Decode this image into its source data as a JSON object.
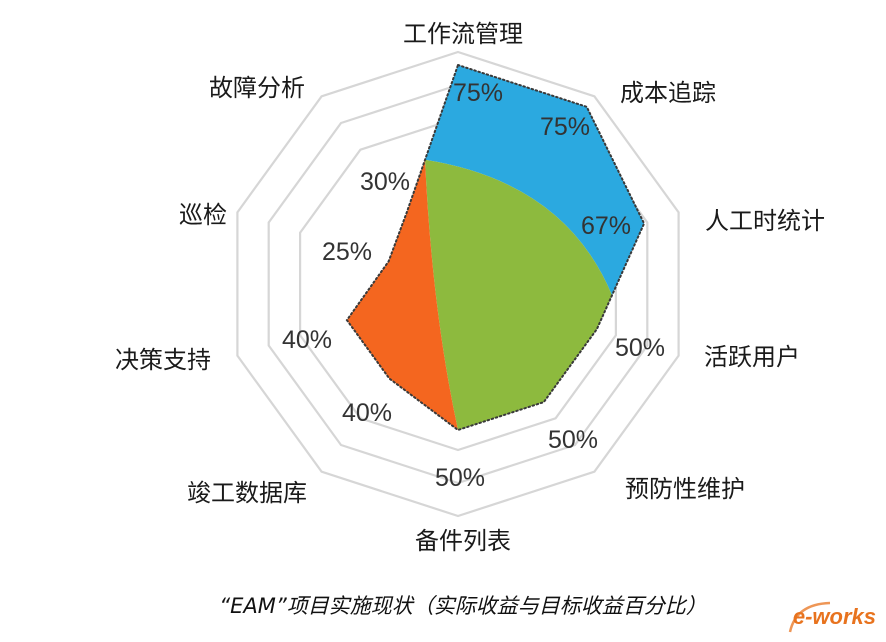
{
  "chart_data": {
    "type": "radar",
    "title": "“EAM”项目实施现状（实际收益与目标收益百分比）",
    "categories": [
      "工作流管理",
      "成本追踪",
      "人工时统计",
      "活跃用户",
      "预防性维护",
      "备件列表",
      "竣工数据库",
      "决策支持",
      "巡检",
      "故障分析"
    ],
    "values": [
      75,
      75,
      67,
      50,
      50,
      50,
      40,
      40,
      25,
      30
    ],
    "value_labels": [
      "75%",
      "75%",
      "67%",
      "50%",
      "50%",
      "50%",
      "40%",
      "40%",
      "25%",
      "30%"
    ],
    "rlim": [
      0,
      100
    ],
    "grid": true,
    "fill_colors": [
      "#2BA9E0",
      "#8DBA3E",
      "#F4661F"
    ]
  },
  "watermark": {
    "text": "e-works",
    "color": "#E8731E"
  }
}
